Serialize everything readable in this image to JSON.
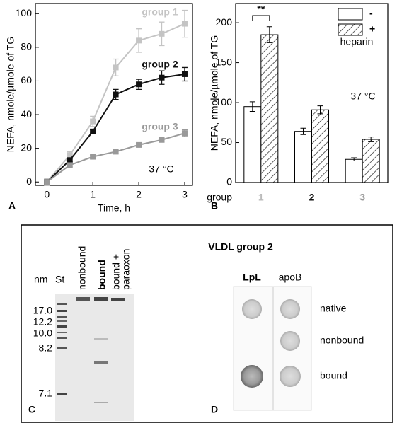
{
  "chart_data": [
    {
      "type": "line",
      "panel": "A",
      "x_label": "Time, h",
      "y_label": "NEFA, nmole/µmole of TG",
      "x": [
        0,
        0.5,
        1,
        1.5,
        2,
        2.5,
        3
      ],
      "series": [
        {
          "name": "group 1",
          "color": "#c4c4c4",
          "values": [
            0,
            16,
            36,
            68,
            84,
            88,
            94
          ],
          "errors": [
            2,
            2,
            3,
            5,
            7,
            7,
            8
          ]
        },
        {
          "name": "group 2",
          "color": "#111111",
          "values": [
            0,
            13,
            30,
            52,
            58,
            62,
            64
          ],
          "errors": [
            1,
            1,
            1,
            3,
            3,
            4,
            4
          ]
        },
        {
          "name": "group 3",
          "color": "#999999",
          "values": [
            0,
            10,
            15,
            18,
            22,
            25,
            29
          ],
          "errors": [
            1,
            1,
            1,
            1,
            1,
            1,
            2
          ]
        }
      ],
      "annotation": "37 °C",
      "xlim": [
        -0.25,
        3.17
      ],
      "xticks": [
        0,
        1,
        2,
        3
      ],
      "ylim": [
        -2,
        106
      ],
      "yticks": [
        0,
        20,
        40,
        60,
        80,
        100
      ]
    },
    {
      "type": "bar",
      "panel": "B",
      "y_label": "NEFA, nmole/µmole of TG",
      "x_label": "group",
      "categories": [
        "1",
        "2",
        "3"
      ],
      "category_colors": [
        "#bbbbbb",
        "#111111",
        "#999999"
      ],
      "series": [
        {
          "name": "-",
          "color": "#ffffff",
          "values": [
            95,
            64,
            29
          ],
          "errors": [
            6,
            4,
            2
          ]
        },
        {
          "name": "+",
          "color": "hatch",
          "values": [
            185,
            91,
            54
          ],
          "errors": [
            10,
            5,
            3
          ]
        }
      ],
      "legend_title": "heparin",
      "significance": "**",
      "annotation": "37 °C",
      "ylim": [
        0,
        224
      ],
      "yticks": [
        0,
        50,
        100,
        150,
        200
      ]
    }
  ],
  "figure_title": "VLDL group 2",
  "gel": {
    "panel": "C",
    "size_unit": "nm",
    "standard": "St",
    "lanes": [
      [
        "nonbound"
      ],
      [
        "bound"
      ],
      [
        "bound +",
        "paraoxon"
      ]
    ],
    "sizes": [
      "17.0",
      "12.2",
      "10.0",
      "8.2",
      "7.1"
    ]
  },
  "blot": {
    "panel": "D",
    "columns": [
      "LpL",
      "apoB"
    ],
    "rows": [
      "native",
      "nonbound",
      "bound"
    ]
  }
}
